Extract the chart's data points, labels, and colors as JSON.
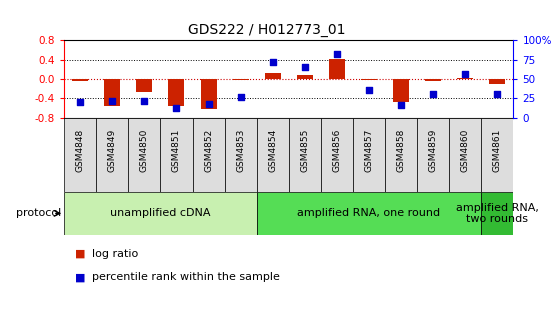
{
  "title": "GDS222 / H012773_01",
  "samples": [
    "GSM4848",
    "GSM4849",
    "GSM4850",
    "GSM4851",
    "GSM4852",
    "GSM4853",
    "GSM4854",
    "GSM4855",
    "GSM4856",
    "GSM4857",
    "GSM4858",
    "GSM4859",
    "GSM4860",
    "GSM4861"
  ],
  "log_ratio": [
    -0.05,
    -0.55,
    -0.28,
    -0.57,
    -0.63,
    -0.02,
    0.12,
    0.08,
    0.42,
    -0.03,
    -0.48,
    -0.05,
    0.02,
    -0.1
  ],
  "percentile": [
    20,
    22,
    22,
    12,
    18,
    27,
    72,
    66,
    82,
    36,
    16,
    30,
    57,
    30
  ],
  "protocols": [
    {
      "label": "unamplified cDNA",
      "start": 0,
      "end": 6,
      "color": "#c8f0b0"
    },
    {
      "label": "amplified RNA, one round",
      "start": 6,
      "end": 13,
      "color": "#55dd55"
    },
    {
      "label": "amplified RNA,\ntwo rounds",
      "start": 13,
      "end": 14,
      "color": "#33bb33"
    }
  ],
  "ylim_left": [
    -0.8,
    0.8
  ],
  "ylim_right": [
    0,
    100
  ],
  "yticks_left": [
    -0.8,
    -0.4,
    0.0,
    0.4,
    0.8
  ],
  "yticks_right": [
    0,
    25,
    50,
    75,
    100
  ],
  "ytick_labels_right": [
    "0",
    "25",
    "50",
    "75",
    "100%"
  ],
  "bar_color": "#cc2200",
  "dot_color": "#0000cc",
  "zero_line_color": "#cc0000",
  "bg_color": "#ffffff",
  "plot_bg": "#ffffff",
  "title_fontsize": 10,
  "tick_fontsize": 7.5,
  "legend_fontsize": 8,
  "protocol_fontsize": 8,
  "sample_label_fontsize": 6.5,
  "sample_bg": "#dddddd"
}
